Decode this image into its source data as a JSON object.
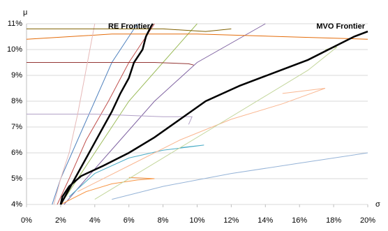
{
  "chart_data": {
    "type": "line",
    "x_label": "σ",
    "y_label": "μ",
    "xlim": [
      0,
      20
    ],
    "ylim": [
      4,
      11
    ],
    "xticks": [
      {
        "value": 0,
        "label": "0%"
      },
      {
        "value": 2,
        "label": "2%"
      },
      {
        "value": 4,
        "label": "4%"
      },
      {
        "value": 6,
        "label": "6%"
      },
      {
        "value": 8,
        "label": "8%"
      },
      {
        "value": 10,
        "label": "10%"
      },
      {
        "value": 12,
        "label": "12%"
      },
      {
        "value": 14,
        "label": "14%"
      },
      {
        "value": 16,
        "label": "16%"
      },
      {
        "value": 18,
        "label": "18%"
      },
      {
        "value": 20,
        "label": "20%"
      }
    ],
    "yticks": [
      {
        "value": 4,
        "label": "4%"
      },
      {
        "value": 5,
        "label": "5%"
      },
      {
        "value": 6,
        "label": "6%"
      },
      {
        "value": 7,
        "label": "7%"
      },
      {
        "value": 8,
        "label": "8%"
      },
      {
        "value": 9,
        "label": "9%"
      },
      {
        "value": 10,
        "label": "10%"
      },
      {
        "value": 11,
        "label": "11%"
      }
    ],
    "grid": true,
    "series": [
      {
        "color": "#4f81bd",
        "x": [
          1.5,
          2,
          3,
          4,
          5,
          6.5
        ],
        "values": [
          4,
          5,
          6.5,
          8,
          9.5,
          11
        ]
      },
      {
        "color": "#c0504d",
        "x": [
          1.8,
          2.5,
          3.5,
          4.8,
          6,
          7.5
        ],
        "values": [
          4,
          5,
          6.5,
          8,
          9.5,
          11
        ]
      },
      {
        "color": "#9bbb59",
        "x": [
          2,
          3,
          4.5,
          6,
          8,
          10
        ],
        "values": [
          4,
          5,
          6.5,
          8,
          9.5,
          11
        ]
      },
      {
        "color": "#8064a2",
        "x": [
          2.2,
          3.5,
          5.5,
          7.5,
          10,
          14
        ],
        "values": [
          4,
          5,
          6.5,
          8,
          9.5,
          11
        ]
      },
      {
        "color": "#4bacc6",
        "x": [
          2.5,
          4,
          6,
          8,
          10.4,
          9
        ],
        "values": [
          4.3,
          5.2,
          5.8,
          6.1,
          6.3,
          6.2
        ]
      },
      {
        "color": "#f79646",
        "x": [
          2,
          3.5,
          5,
          6.5,
          7.5,
          6
        ],
        "values": [
          4,
          4.5,
          4.8,
          4.95,
          5,
          5.05
        ]
      },
      {
        "color": "#fab791",
        "x": [
          3,
          6,
          9,
          12,
          15,
          17.5,
          15
        ],
        "values": [
          4.5,
          5.5,
          6.5,
          7.3,
          7.9,
          8.5,
          8.3
        ]
      },
      {
        "color": "#c3d69b",
        "x": [
          4,
          8,
          11,
          14,
          16.5,
          18.2,
          17.5
        ],
        "values": [
          4.2,
          5.8,
          7,
          8.2,
          9.2,
          10.1,
          10
        ]
      },
      {
        "color": "#943634",
        "x": [
          0,
          3,
          5,
          7.5,
          9.5,
          9.8
        ],
        "values": [
          9.5,
          9.5,
          9.5,
          9.5,
          9.45,
          9.4
        ]
      },
      {
        "color": "#e46c0a",
        "x": [
          0,
          5,
          10,
          15,
          20
        ],
        "values": [
          10.4,
          10.6,
          10.6,
          10.5,
          10.4
        ]
      },
      {
        "color": "#95b3d7",
        "x": [
          5,
          8,
          12,
          16,
          20
        ],
        "values": [
          4.2,
          4.7,
          5.2,
          5.6,
          6
        ]
      },
      {
        "color": "#b2a1c7",
        "x": [
          0,
          4,
          8,
          9.7,
          9.5
        ],
        "values": [
          7.5,
          7.5,
          7.4,
          7.4,
          7.1
        ]
      },
      {
        "color": "#e6b9b8",
        "x": [
          1.6,
          2,
          2.5,
          3,
          4
        ],
        "values": [
          4,
          5,
          6,
          7.5,
          11
        ]
      },
      {
        "color": "#7f6000",
        "x": [
          0,
          5,
          8,
          10.5,
          12
        ],
        "values": [
          10.8,
          10.8,
          10.8,
          10.7,
          10.8
        ]
      },
      {
        "name": "RE Frontier",
        "color": "#000000",
        "x": [
          2,
          2.5,
          3,
          3.5,
          4,
          4.5,
          5,
          5.5,
          6,
          6.3,
          6.8,
          7,
          7.3,
          7.4
        ],
        "values": [
          4,
          4.6,
          5.2,
          5.8,
          6.4,
          7,
          7.6,
          8.3,
          8.9,
          9.5,
          10,
          10.5,
          10.9,
          11
        ]
      },
      {
        "name": "MVO Frontier",
        "color": "#000000",
        "x": [
          2,
          2.1,
          2.5,
          3.2,
          4.5,
          6,
          7.5,
          9,
          10.5,
          12.5,
          14.5,
          16.5,
          18,
          19.2,
          20
        ],
        "values": [
          4,
          4.3,
          4.7,
          5.1,
          5.5,
          6,
          6.6,
          7.3,
          8,
          8.6,
          9.1,
          9.6,
          10.1,
          10.5,
          10.7
        ]
      }
    ]
  }
}
